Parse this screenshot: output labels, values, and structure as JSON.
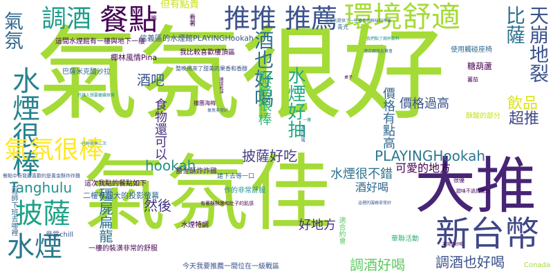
{
  "words": [
    {
      "text": "氣氛很好",
      "color": "#a5db36"
    },
    {
      "text": "氣氛佳",
      "color": "#a5db36"
    },
    {
      "text": "大推",
      "color": "#482475"
    },
    {
      "text": "新台幣",
      "color": "#3f4788"
    },
    {
      "text": "環境舒適",
      "color": "#a5db36"
    },
    {
      "text": "餐點",
      "color": "#440154"
    },
    {
      "text": "推推",
      "color": "#3b528b"
    },
    {
      "text": "推薦",
      "color": "#3b528b"
    },
    {
      "text": "調酒",
      "color": "#1e9c89"
    },
    {
      "text": "氣氛",
      "color": "#31688e"
    },
    {
      "text": "水煙很棒",
      "color": "#25838e"
    },
    {
      "text": "氣氛很棒",
      "color": "#fde725"
    },
    {
      "text": "披薩",
      "color": "#1fa187"
    },
    {
      "text": "水煙",
      "color": "#2a788e"
    },
    {
      "text": "比薩",
      "color": "#2c728e"
    },
    {
      "text": "天崩地裂",
      "color": "#3b528b"
    },
    {
      "text": "酒也好喝",
      "color": "#2d708e"
    },
    {
      "text": "水煙好抽",
      "color": "#22a884"
    },
    {
      "text": "服務很棒",
      "color": "#35b779"
    },
    {
      "text": "飲品",
      "color": "#dde318"
    },
    {
      "text": "超推",
      "color": "#3e4989"
    },
    {
      "text": "PLAYINGHookah",
      "color": "#2a788e"
    },
    {
      "text": "hookah",
      "color": "#21918c"
    },
    {
      "text": "Tanghulu",
      "color": "#21918c"
    },
    {
      "text": "披薩好吃",
      "color": "#433e85"
    },
    {
      "text": "調酒也好喝",
      "color": "#3b528b"
    },
    {
      "text": "調酒好喝",
      "color": "#5ec962"
    },
    {
      "text": "殭屍扁龍",
      "color": "#2c728e"
    },
    {
      "text": "酒吧",
      "color": "#39568c"
    },
    {
      "text": "然後",
      "color": "#453781"
    },
    {
      "text": "好地方",
      "color": "#46307e"
    },
    {
      "text": "價格過高",
      "color": "#3b528b"
    },
    {
      "text": "價格有點高",
      "color": "#31688e"
    },
    {
      "text": "水煙很不錯",
      "color": "#2c728e"
    },
    {
      "text": "食物還可以",
      "color": "#472d7b"
    },
    {
      "text": "酒好喝",
      "color": "#31688e"
    },
    {
      "text": "可愛的地方",
      "color": "#440154"
    },
    {
      "text": "但有點貴",
      "color": "#c8e020"
    },
    {
      "text": "這間水煙館有一樓與地下一樓",
      "color": "#440154"
    },
    {
      "text": "信義區的水煙館PLAYINGHookah",
      "color": "#3b528b"
    },
    {
      "text": "椰林風情Pina",
      "color": "#440154"
    },
    {
      "text": "巴薩米克醋沙拉",
      "color": "#31688e"
    },
    {
      "text": "我比較喜歡樓頂區",
      "color": "#440154"
    },
    {
      "text": "整晚用來了甜美的果香和香醇",
      "color": "#3b528b"
    },
    {
      "text": "糖葫蘆",
      "color": "#440154"
    },
    {
      "text": "使用觸碰座椅",
      "color": "#31688e"
    },
    {
      "text": "蓄金酥炸炸雞",
      "color": "#472d7b"
    },
    {
      "text": "這次我點的餐點如下",
      "color": "#440154"
    },
    {
      "text": "二樓有超大的投影螢幕",
      "color": "#31688e"
    },
    {
      "text": "有著酥酥脆和肚子的肌感",
      "color": "#440154"
    },
    {
      "text": "水煙特調",
      "color": "#440154"
    },
    {
      "text": "作的非常舒服",
      "color": "#21918c"
    },
    {
      "text": "一樓的裝潢非常的舒服",
      "color": "#440154"
    },
    {
      "text": "今天我要推薦一間位在一級戰區",
      "color": "#3b528b"
    },
    {
      "text": "Conada",
      "color": "#a5db36"
    },
    {
      "text": "非常chill",
      "color": "#3b528b"
    },
    {
      "text": "工程師下班去哪裡",
      "color": "#31688e"
    },
    {
      "text": "華聯活動",
      "color": "#35b779"
    },
    {
      "text": "適合約會",
      "color": "#5ec962"
    },
    {
      "text": "建下去等一口",
      "color": "#31688e"
    },
    {
      "text": "看著",
      "color": "#440154"
    },
    {
      "text": "撞團海梅",
      "color": "#440154"
    },
    {
      "text": "青光",
      "color": "#31688e"
    },
    {
      "text": "很優",
      "color": "#440154"
    },
    {
      "text": "酥酸的部分",
      "color": "#c8e020"
    },
    {
      "text": "我們點了兩杯飲料",
      "color": "#21918c"
    },
    {
      "text": "蕃茄",
      "color": "#440154"
    },
    {
      "text": "非常的好喝",
      "color": "#440154"
    },
    {
      "text": "最後則提供了一些著名的鮮味和平衡",
      "color": "#31688e"
    },
    {
      "text": "也讓人想要繼續探索",
      "color": "#21918c"
    },
    {
      "text": "這裡的服務非常好",
      "color": "#3b528b"
    },
    {
      "text": "餐點中奇我最喜歡的是黃金酥炸炸雞",
      "color": "#3b528b"
    },
    {
      "text": "甜味不過於膩口",
      "color": "#440154"
    },
    {
      "text": "適合跟朋友聚會",
      "color": "#31688e"
    },
    {
      "text": "等",
      "color": "#440154"
    },
    {
      "text": "已經是第二次",
      "color": "#21918c"
    },
    {
      "text": "氣氛非常好",
      "color": "#3b528b"
    },
    {
      "text": "環境乾淨",
      "color": "#440154"
    },
    {
      "text": "真的好喝",
      "color": "#31688e"
    },
    {
      "text": "桌子",
      "color": "#440154"
    },
    {
      "text": "一樓",
      "color": "#21918c"
    }
  ]
}
